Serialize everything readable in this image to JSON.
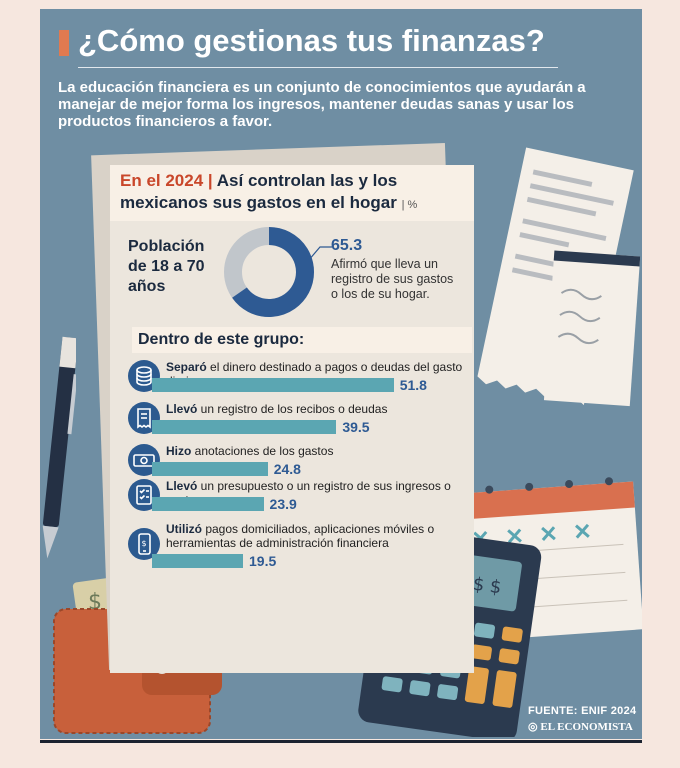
{
  "header": {
    "title": "¿Cómo gestionas tus finanzas?",
    "intro": "La educación financiera es un conjunto de conocimientos que ayudarán a manejar de mejor forma los ingresos, mantener deudas sanas y usar los productos financieros a favor."
  },
  "card": {
    "year_label": "En el 2024",
    "separator": "|",
    "title_line1": "Así controlan las y los",
    "title_line2": "mexicanos sus gastos en el hogar",
    "unit_label": "| %",
    "population_label": "Población de 18 a 70 años",
    "group_title": "Dentro de este grupo:"
  },
  "calculator": {
    "display": "$ $"
  },
  "footer": {
    "source": "FUENTE: ENIF 2024",
    "logo": "EL ECONOMISTA"
  },
  "colors": {
    "panel": "#6f8ea3",
    "accent": "#c9472a",
    "bar": "#5ba6b2",
    "donut": "#2e5a93",
    "navy": "#1b2a3f"
  },
  "chart_data": [
    {
      "type": "pie",
      "title": "Población de 18 a 70 años",
      "values": [
        65.3,
        34.7
      ],
      "labels": [
        "Afirmó que lleva un registro de sus gastos o los de su hogar.",
        ""
      ],
      "value_label": "65.3",
      "description": "Afirmó que lleva un registro de sus gastos o los de su hogar."
    },
    {
      "type": "bar",
      "title": "Dentro de este grupo:",
      "unit": "%",
      "xlim": [
        0,
        60
      ],
      "rows": [
        {
          "bold": "Separó",
          "rest": "el dinero destinado a pagos o deudas del gasto diario",
          "value": 51.8,
          "value_label": "51.8",
          "icon": "coins-icon"
        },
        {
          "bold": "Llevó",
          "rest": "un registro de los recibos o deudas",
          "value": 39.5,
          "value_label": "39.5",
          "icon": "receipt-icon"
        },
        {
          "bold": "Hizo",
          "rest": "anotaciones de los gastos",
          "value": 24.8,
          "value_label": "24.8",
          "icon": "cash-icon"
        },
        {
          "bold": "Llevó",
          "rest": "un presupuesto o un registro de sus ingresos o gastos",
          "value": 23.9,
          "value_label": "23.9",
          "icon": "checklist-icon"
        },
        {
          "bold": "Utilizó",
          "rest": "pagos domiciliados, aplicaciones móviles o herramientas de administración financiera",
          "value": 19.5,
          "value_label": "19.5",
          "icon": "phone-payment-icon"
        }
      ]
    }
  ]
}
